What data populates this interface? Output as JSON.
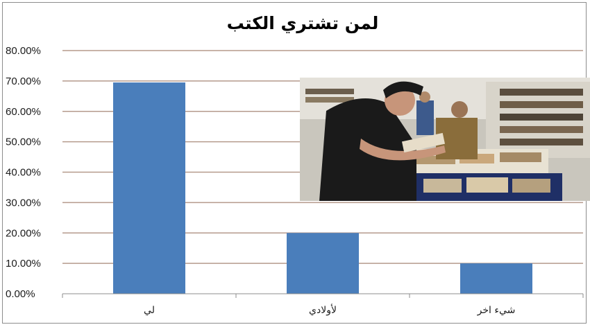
{
  "chart_data": {
    "type": "bar",
    "title": "لمن تشتري الكتب",
    "categories": [
      "لي",
      "لأولادي",
      "شيء اخر"
    ],
    "values": [
      0.695,
      0.2,
      0.1
    ],
    "ylim": [
      0,
      0.8
    ],
    "yticks": [
      "0.00%",
      "10.00%",
      "20.00%",
      "30.00%",
      "40.00%",
      "50.00%",
      "60.00%",
      "70.00%",
      "80.00%"
    ],
    "grid": true,
    "bar_color": "#4a7ebb",
    "grid_color": "#b59a8c"
  },
  "photo": {
    "description_icon": "photo-man-reading-at-book-fair"
  }
}
